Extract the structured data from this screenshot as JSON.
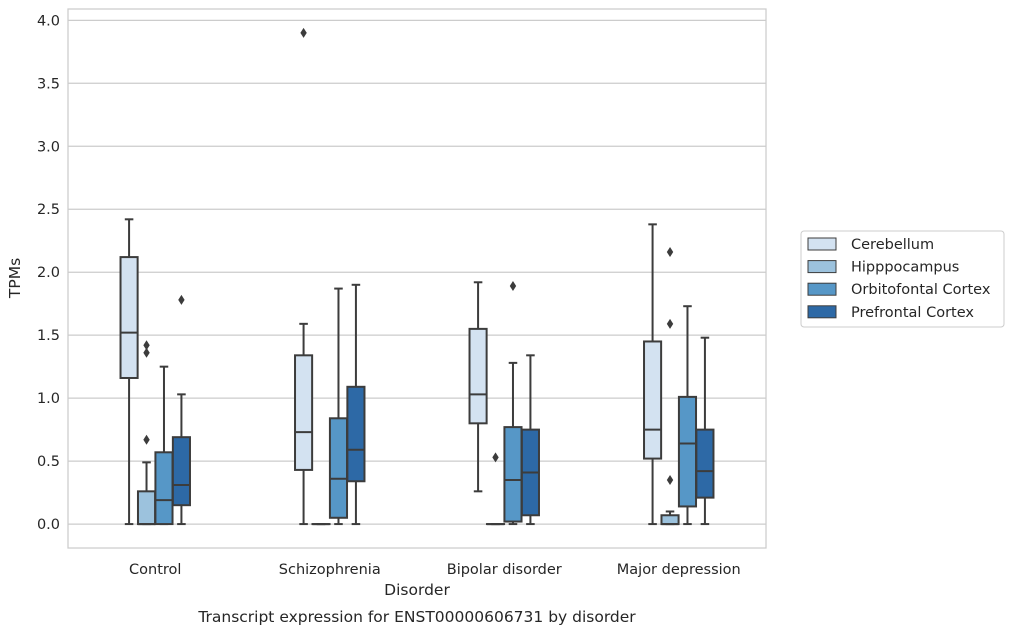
{
  "chart_data": {
    "type": "box",
    "title": "",
    "caption": "Transcript expression for ENST00000606731 by disorder",
    "xlabel": "Disorder",
    "ylabel": "TPMs",
    "categories": [
      "Control",
      "Schizophrenia",
      "Bipolar disorder",
      "Major depression"
    ],
    "ylim": [
      -0.19,
      4.09
    ],
    "yticks": [
      0.0,
      0.5,
      1.0,
      1.5,
      2.0,
      2.5,
      3.0,
      3.5,
      4.0
    ],
    "ytick_labels": [
      "0.0",
      "0.5",
      "1.0",
      "1.5",
      "2.0",
      "2.5",
      "3.0",
      "3.5",
      "4.0"
    ],
    "grid": "horizontal",
    "legend_position": "right",
    "series": [
      {
        "name": "Cerebellum",
        "color": "#d3e2f1",
        "boxes": [
          {
            "whisker_low": 0.0,
            "q1": 1.16,
            "median": 1.52,
            "q3": 2.12,
            "whisker_high": 2.42,
            "outliers": []
          },
          {
            "whisker_low": 0.0,
            "q1": 0.43,
            "median": 0.73,
            "q3": 1.34,
            "whisker_high": 1.59,
            "outliers": [
              3.9
            ]
          },
          {
            "whisker_low": 0.26,
            "q1": 0.8,
            "median": 1.03,
            "q3": 1.55,
            "whisker_high": 1.92,
            "outliers": []
          },
          {
            "whisker_low": 0.0,
            "q1": 0.52,
            "median": 0.75,
            "q3": 1.45,
            "whisker_high": 2.38,
            "outliers": []
          }
        ]
      },
      {
        "name": "Hipppocampus",
        "color": "#9cc2dd",
        "boxes": [
          {
            "whisker_low": 0.0,
            "q1": 0.0,
            "median": 0.0,
            "q3": 0.26,
            "whisker_high": 0.49,
            "outliers": [
              0.67,
              1.36,
              1.42
            ]
          },
          {
            "whisker_low": 0.0,
            "q1": 0.0,
            "median": 0.0,
            "q3": 0.0,
            "whisker_high": 0.0,
            "outliers": []
          },
          {
            "whisker_low": 0.0,
            "q1": 0.0,
            "median": 0.0,
            "q3": 0.0,
            "whisker_high": 0.0,
            "outliers": [
              0.53
            ]
          },
          {
            "whisker_low": 0.0,
            "q1": 0.0,
            "median": 0.0,
            "q3": 0.07,
            "whisker_high": 0.1,
            "outliers": [
              0.35,
              1.59,
              2.16
            ]
          }
        ]
      },
      {
        "name": "Orbitofontal Cortex",
        "color": "#5697c7",
        "boxes": [
          {
            "whisker_low": 0.0,
            "q1": 0.0,
            "median": 0.19,
            "q3": 0.57,
            "whisker_high": 1.25,
            "outliers": []
          },
          {
            "whisker_low": 0.0,
            "q1": 0.05,
            "median": 0.36,
            "q3": 0.84,
            "whisker_high": 1.87,
            "outliers": []
          },
          {
            "whisker_low": 0.0,
            "q1": 0.02,
            "median": 0.35,
            "q3": 0.77,
            "whisker_high": 1.28,
            "outliers": [
              1.89
            ]
          },
          {
            "whisker_low": 0.0,
            "q1": 0.14,
            "median": 0.64,
            "q3": 1.01,
            "whisker_high": 1.73,
            "outliers": []
          }
        ]
      },
      {
        "name": "Prefrontal Cortex",
        "color": "#2d69a6",
        "boxes": [
          {
            "whisker_low": 0.0,
            "q1": 0.15,
            "median": 0.31,
            "q3": 0.69,
            "whisker_high": 1.03,
            "outliers": [
              1.78
            ]
          },
          {
            "whisker_low": 0.0,
            "q1": 0.34,
            "median": 0.59,
            "q3": 1.09,
            "whisker_high": 1.9,
            "outliers": []
          },
          {
            "whisker_low": 0.0,
            "q1": 0.07,
            "median": 0.41,
            "q3": 0.75,
            "whisker_high": 1.34,
            "outliers": []
          },
          {
            "whisker_low": 0.0,
            "q1": 0.21,
            "median": 0.42,
            "q3": 0.75,
            "whisker_high": 1.48,
            "outliers": []
          }
        ]
      }
    ]
  }
}
